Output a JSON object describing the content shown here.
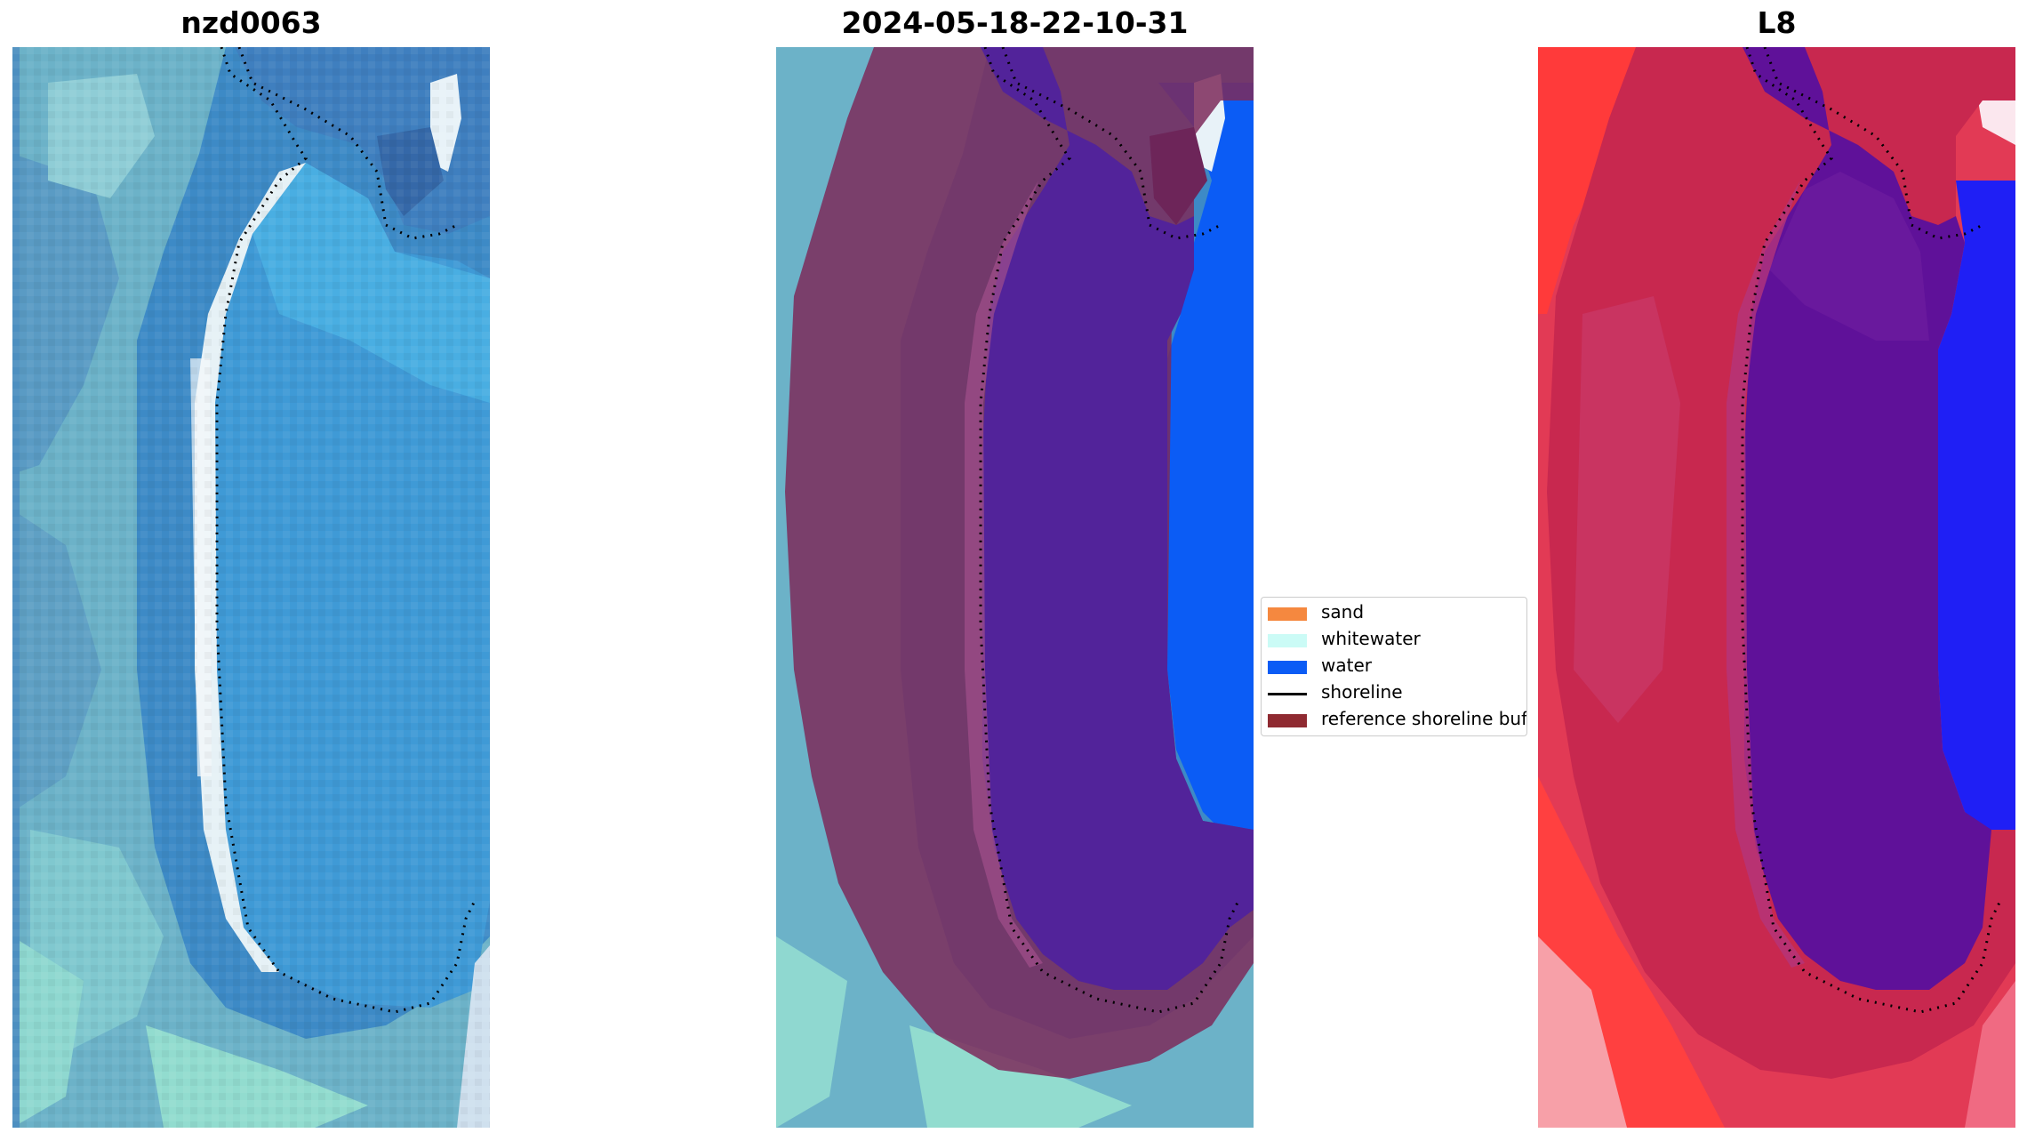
{
  "panels": [
    {
      "title": "nzd0063",
      "kind": "rgb"
    },
    {
      "title": "2024-05-18-22-10-31",
      "kind": "classified"
    },
    {
      "title": "L8",
      "kind": "mndwi"
    }
  ],
  "legend": {
    "items": [
      {
        "label": "sand",
        "type": "patch",
        "color": "#f5883f"
      },
      {
        "label": "whitewater",
        "type": "patch",
        "color": "#cbfbf6"
      },
      {
        "label": "water",
        "type": "patch",
        "color": "#0b5cf5"
      },
      {
        "label": "shoreline",
        "type": "line",
        "color": "#000000"
      },
      {
        "label": "reference shoreline buffer",
        "type": "patch",
        "color": "#8f2a31"
      }
    ]
  },
  "colors": {
    "rgb_water": "#3f8fcc",
    "rgb_lagoon": "#3f9fd8",
    "rgb_land": "#6bb3c9",
    "rgb_sand": "#dfeef4",
    "rgb_foam": "#8fe0d0",
    "buffer_overlay": "#7d2a5a",
    "class_water": "#0b5cf5",
    "class_lagoon": "#52239a",
    "mndwi_red": "#d21e4a",
    "mndwi_bright_red": "#ff2a2a",
    "mndwi_blue": "#1f1ff5",
    "mndwi_purple": "#5f1199"
  }
}
